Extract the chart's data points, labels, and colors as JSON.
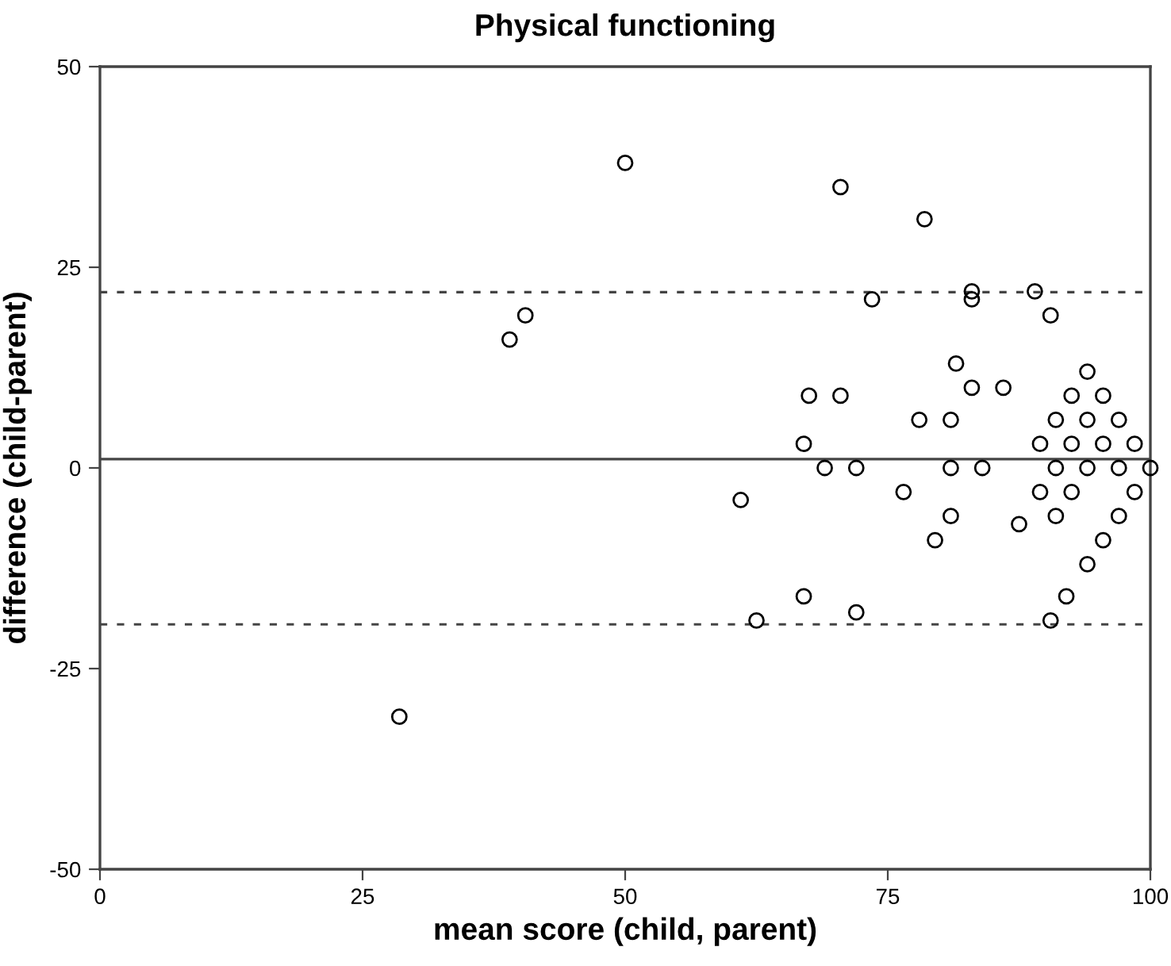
{
  "chart_data": {
    "type": "scatter",
    "title": "Physical functioning",
    "xlabel": "mean score (child, parent)",
    "ylabel": "difference (child-parent)",
    "x": [
      28.5,
      39,
      40.5,
      50,
      70.5,
      78.5,
      61,
      62.5,
      67,
      67,
      67.5,
      69,
      70.5,
      72,
      72,
      73.5,
      76.5,
      78,
      79.5,
      81,
      81,
      81,
      81.5,
      83,
      83,
      83,
      84,
      86,
      87.5,
      89,
      89.5,
      89.5,
      90.5,
      90.5,
      91,
      91,
      91,
      92,
      92.5,
      92.5,
      92.5,
      94,
      94,
      94,
      94,
      95.5,
      95.5,
      95.5,
      97,
      97,
      97,
      98.5,
      98.5,
      100
    ],
    "values": [
      -31,
      16,
      19,
      38,
      35,
      31,
      -4,
      -19,
      -16,
      3,
      9,
      0,
      9,
      0,
      -18,
      21,
      -3,
      6,
      -9,
      6,
      0,
      -6,
      13,
      22,
      21,
      10,
      0,
      10,
      -7,
      22,
      3,
      -3,
      19,
      -19,
      6,
      0,
      -6,
      -16,
      9,
      3,
      -3,
      12,
      6,
      0,
      -12,
      9,
      3,
      -9,
      6,
      0,
      -6,
      3,
      -3,
      0
    ],
    "color": "#000000",
    "marker": "circle",
    "xlim": [
      0,
      100
    ],
    "xticks": [
      0,
      25,
      50,
      75,
      100
    ],
    "ylim": [
      -50,
      50
    ],
    "yticks": [
      -50,
      -25,
      0,
      25,
      50
    ],
    "grid": false,
    "ref_lines": [
      {
        "axis": "y",
        "value": 1.1,
        "line_style": "solid",
        "color": "#444444"
      },
      {
        "axis": "y",
        "value": 21.9,
        "line_style": "dashed",
        "color": "#444444"
      },
      {
        "axis": "y",
        "value": -19.5,
        "line_style": "dashed",
        "color": "#444444"
      }
    ]
  }
}
